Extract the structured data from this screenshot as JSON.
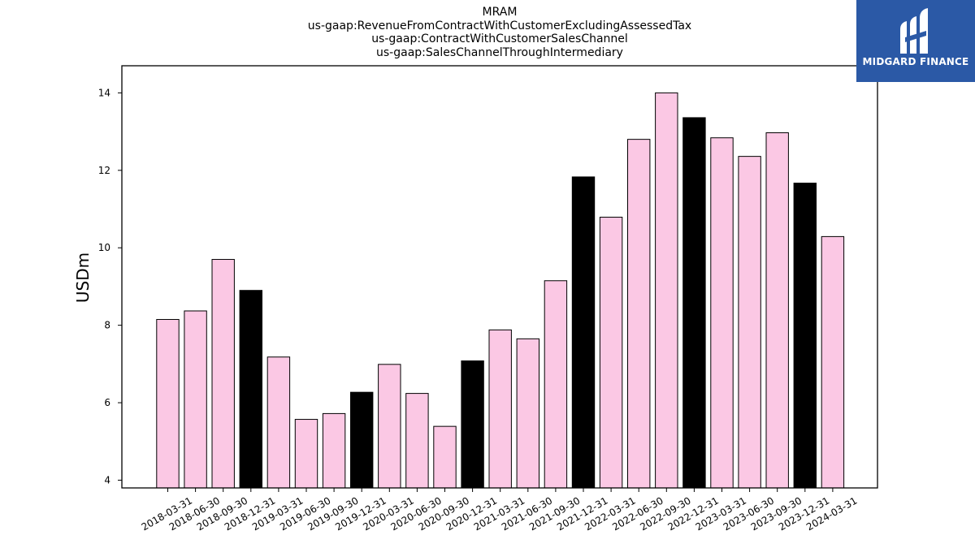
{
  "titles": {
    "line1": "MRAM",
    "line2": "us-gaap:RevenueFromContractWithCustomerExcludingAssessedTax",
    "line3": "us-gaap:ContractWithCustomerSalesChannel",
    "line4": "us-gaap:SalesChannelThroughIntermediary"
  },
  "logo": {
    "text": "MIDGARD FINANCE",
    "background": "#2b59a6",
    "foreground": "#ffffff"
  },
  "chart_data": {
    "type": "bar",
    "ylabel": "USDm",
    "xlabel": "",
    "ylim": [
      3.8,
      14.7
    ],
    "yticks": [
      4,
      6,
      8,
      10,
      12,
      14
    ],
    "grid": false,
    "colors": {
      "quarter": "#fbc8e4",
      "year_end": "#000000",
      "edge": "#000000"
    },
    "categories": [
      "2018-03-31",
      "2018-06-30",
      "2018-09-30",
      "2018-12-31",
      "2019-03-31",
      "2019-06-30",
      "2019-09-30",
      "2019-12-31",
      "2020-03-31",
      "2020-06-30",
      "2020-09-30",
      "2020-12-31",
      "2021-03-31",
      "2021-06-30",
      "2021-09-30",
      "2021-12-31",
      "2022-03-31",
      "2022-06-30",
      "2022-09-30",
      "2022-12-31",
      "2023-03-31",
      "2023-06-30",
      "2023-09-30",
      "2023-12-31",
      "2024-03-31"
    ],
    "values": [
      8.15,
      8.37,
      9.7,
      8.9,
      7.18,
      5.57,
      5.72,
      6.27,
      6.99,
      6.24,
      5.39,
      7.08,
      7.88,
      7.65,
      9.15,
      11.83,
      10.79,
      12.8,
      14.0,
      13.36,
      12.84,
      12.36,
      12.97,
      11.67,
      10.29
    ],
    "highlight": [
      false,
      false,
      false,
      true,
      false,
      false,
      false,
      true,
      false,
      false,
      false,
      true,
      false,
      false,
      false,
      true,
      false,
      false,
      false,
      true,
      false,
      false,
      false,
      true,
      false
    ]
  }
}
